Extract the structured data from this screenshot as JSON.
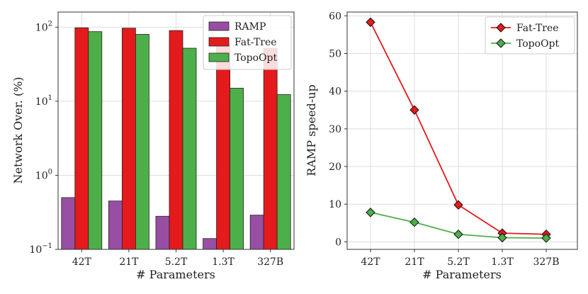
{
  "chart_data": [
    {
      "type": "bar",
      "xlabel": "# Parameters",
      "ylabel": "Network Over. (%)",
      "yscale": "log",
      "ylim": [
        0.1,
        160
      ],
      "categories": [
        "42T",
        "21T",
        "5.2T",
        "1.3T",
        "327B"
      ],
      "yticks": [
        {
          "value": 0.1,
          "base": "10",
          "exp": "−1"
        },
        {
          "value": 1,
          "base": "10",
          "exp": "0"
        },
        {
          "value": 10,
          "base": "10",
          "exp": "1"
        },
        {
          "value": 100,
          "base": "10",
          "exp": "2"
        }
      ],
      "series": [
        {
          "name": "RAMP",
          "color": "#984ea3",
          "values": [
            0.5,
            0.45,
            0.28,
            0.14,
            0.29
          ]
        },
        {
          "name": "Fat-Tree",
          "color": "#e41a1c",
          "values": [
            98,
            97,
            90,
            60,
            52
          ]
        },
        {
          "name": "TopoOpt",
          "color": "#4daf4a",
          "values": [
            87,
            80,
            52,
            15,
            12.3
          ]
        }
      ],
      "legend": "top-right",
      "grid": true
    },
    {
      "type": "line",
      "xlabel": "# Parameters",
      "ylabel": "RAMP speed-up",
      "ylim": [
        -2,
        61
      ],
      "categories": [
        "42T",
        "21T",
        "5.2T",
        "1.3T",
        "327B"
      ],
      "yticks": [
        "0",
        "10",
        "20",
        "30",
        "40",
        "50",
        "60"
      ],
      "series": [
        {
          "name": "Fat-Tree",
          "color": "#e41a1c",
          "values": [
            58.3,
            35,
            9.8,
            2.3,
            2.0
          ]
        },
        {
          "name": "TopoOpt",
          "color": "#4daf4a",
          "values": [
            7.8,
            5.2,
            2.0,
            1.1,
            1.0
          ]
        }
      ],
      "legend": "top-right",
      "grid": true
    }
  ]
}
